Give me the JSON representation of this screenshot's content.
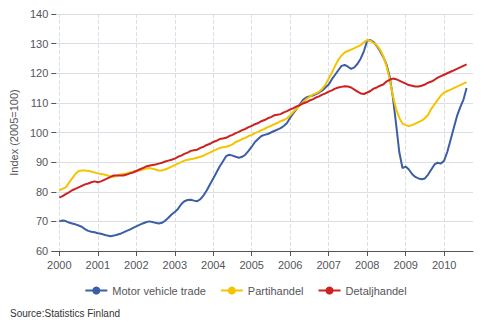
{
  "chart_data": {
    "type": "line",
    "ylabel": "Index (2005=100)",
    "source": "Source:Statistics Finland",
    "xlim": [
      1999.92,
      2010.75
    ],
    "xticks": [
      2000,
      2001,
      2002,
      2003,
      2004,
      2005,
      2006,
      2007,
      2008,
      2009,
      2010
    ],
    "ylim": [
      60,
      140
    ],
    "yticks": [
      60,
      70,
      80,
      90,
      100,
      110,
      120,
      130,
      140
    ],
    "grid": true,
    "legend": "bottom",
    "x": [
      2000,
      2000.0833333333333,
      2000.1666666666667,
      2000.25,
      2000.3333333333333,
      2000.4166666666667,
      2000.5,
      2000.5833333333333,
      2000.6666666666667,
      2000.75,
      2000.8333333333333,
      2000.9166666666667,
      2001,
      2001.0833333333333,
      2001.1666666666667,
      2001.25,
      2001.3333333333333,
      2001.4166666666667,
      2001.5,
      2001.5833333333333,
      2001.6666666666667,
      2001.75,
      2001.8333333333333,
      2001.9166666666667,
      2002,
      2002.0833333333333,
      2002.1666666666667,
      2002.25,
      2002.3333333333333,
      2002.4166666666667,
      2002.5,
      2002.5833333333333,
      2002.6666666666667,
      2002.75,
      2002.8333333333333,
      2002.9166666666667,
      2003,
      2003.0833333333333,
      2003.1666666666667,
      2003.25,
      2003.3333333333333,
      2003.4166666666667,
      2003.5,
      2003.5833333333333,
      2003.6666666666667,
      2003.75,
      2003.8333333333333,
      2003.9166666666667,
      2004,
      2004.0833333333333,
      2004.1666666666667,
      2004.25,
      2004.3333333333333,
      2004.4166666666667,
      2004.5,
      2004.5833333333333,
      2004.6666666666667,
      2004.75,
      2004.8333333333333,
      2004.9166666666667,
      2005,
      2005.0833333333333,
      2005.1666666666667,
      2005.25,
      2005.3333333333333,
      2005.4166666666667,
      2005.5,
      2005.5833333333333,
      2005.6666666666667,
      2005.75,
      2005.8333333333333,
      2005.9166666666667,
      2006,
      2006.0833333333333,
      2006.1666666666667,
      2006.25,
      2006.3333333333333,
      2006.4166666666667,
      2006.5,
      2006.5833333333333,
      2006.6666666666667,
      2006.75,
      2006.8333333333333,
      2006.9166666666667,
      2007,
      2007.0833333333333,
      2007.1666666666667,
      2007.25,
      2007.3333333333333,
      2007.4166666666667,
      2007.5,
      2007.5833333333333,
      2007.6666666666667,
      2007.75,
      2007.8333333333333,
      2007.9166666666667,
      2008,
      2008.0833333333333,
      2008.1666666666667,
      2008.25,
      2008.3333333333333,
      2008.4166666666667,
      2008.5,
      2008.5833333333333,
      2008.6666666666667,
      2008.75,
      2008.8333333333333,
      2008.9166666666667,
      2009,
      2009.0833333333333,
      2009.1666666666667,
      2009.25,
      2009.3333333333333,
      2009.4166666666667,
      2009.5,
      2009.5833333333333,
      2009.6666666666667,
      2009.75,
      2009.8333333333333,
      2009.9166666666667,
      2010,
      2010.0833333333333,
      2010.1666666666667,
      2010.25,
      2010.3333333333333,
      2010.4166666666667,
      2010.5,
      2010.5833333333333
    ],
    "series": [
      {
        "name": "Motor vehicle trade",
        "color": "#3B5EA6",
        "values": [
          70.0,
          70.3,
          70.1,
          69.6,
          69.3,
          69.0,
          68.6,
          68.2,
          67.4,
          66.8,
          66.5,
          66.3,
          66.0,
          65.8,
          65.5,
          65.2,
          65.0,
          65.2,
          65.5,
          65.8,
          66.3,
          66.8,
          67.2,
          67.8,
          68.3,
          68.8,
          69.3,
          69.7,
          70.0,
          69.8,
          69.5,
          69.3,
          69.5,
          70.2,
          71.2,
          72.3,
          73.2,
          74.2,
          75.8,
          76.8,
          77.2,
          77.3,
          77.0,
          76.8,
          77.5,
          78.8,
          80.5,
          82.5,
          84.5,
          86.5,
          88.5,
          90.2,
          92.0,
          92.5,
          92.2,
          91.8,
          91.5,
          91.8,
          92.5,
          93.8,
          95.2,
          96.8,
          97.8,
          98.8,
          99.2,
          99.5,
          100.0,
          100.5,
          101.0,
          101.5,
          102.2,
          103.2,
          105.0,
          106.5,
          108.0,
          109.5,
          111.0,
          111.8,
          112.2,
          112.5,
          113.0,
          113.5,
          114.2,
          115.2,
          116.2,
          118.0,
          119.5,
          121.0,
          122.5,
          122.8,
          122.2,
          121.5,
          122.0,
          123.2,
          125.0,
          127.5,
          131.0,
          131.2,
          130.5,
          129.2,
          127.5,
          125.5,
          123.0,
          119.0,
          112.0,
          103.0,
          93.5,
          88.0,
          88.5,
          87.5,
          86.0,
          85.0,
          84.5,
          84.2,
          84.5,
          85.8,
          87.5,
          89.2,
          89.8,
          89.5,
          90.5,
          93.5,
          97.5,
          101.5,
          105.5,
          108.5,
          111.0,
          115.0
        ]
      },
      {
        "name": "Partihandel",
        "color": "#F5C400",
        "values": [
          80.5,
          81.0,
          81.5,
          83.0,
          84.5,
          86.0,
          87.0,
          87.2,
          87.2,
          87.0,
          86.8,
          86.5,
          86.2,
          86.0,
          85.8,
          85.5,
          85.2,
          85.0,
          85.5,
          85.8,
          86.0,
          86.2,
          86.5,
          86.8,
          87.0,
          87.2,
          87.5,
          87.8,
          88.0,
          87.8,
          87.5,
          87.2,
          87.2,
          87.5,
          88.0,
          88.5,
          89.0,
          89.5,
          90.0,
          90.5,
          90.8,
          91.0,
          91.2,
          91.5,
          91.8,
          92.2,
          92.8,
          93.2,
          93.8,
          94.2,
          94.8,
          95.0,
          95.2,
          95.5,
          96.0,
          96.8,
          97.2,
          97.8,
          98.2,
          98.8,
          99.2,
          99.8,
          100.2,
          100.8,
          101.2,
          101.8,
          102.2,
          102.8,
          103.2,
          103.8,
          104.2,
          104.8,
          105.8,
          107.0,
          108.0,
          109.2,
          110.2,
          111.2,
          112.0,
          112.8,
          113.2,
          113.8,
          114.8,
          116.2,
          118.2,
          120.2,
          122.5,
          124.5,
          126.0,
          127.0,
          127.5,
          128.0,
          128.5,
          129.0,
          129.5,
          130.5,
          131.2,
          131.0,
          130.2,
          129.5,
          128.0,
          125.8,
          122.5,
          118.0,
          112.5,
          108.0,
          105.0,
          103.0,
          102.5,
          102.2,
          102.5,
          103.0,
          103.5,
          104.0,
          104.8,
          106.0,
          108.0,
          109.5,
          111.0,
          112.5,
          113.5,
          114.0,
          114.5,
          115.0,
          115.5,
          116.0,
          116.5,
          117.0
        ]
      },
      {
        "name": "Detaljhandel",
        "color": "#CC2222",
        "values": [
          78.0,
          78.5,
          79.2,
          79.8,
          80.5,
          81.0,
          81.5,
          82.0,
          82.5,
          82.8,
          83.2,
          83.5,
          83.2,
          83.5,
          84.0,
          84.5,
          85.0,
          85.5,
          85.5,
          85.5,
          85.5,
          85.8,
          86.2,
          86.5,
          87.0,
          87.5,
          88.0,
          88.5,
          88.8,
          89.0,
          89.2,
          89.5,
          89.8,
          90.2,
          90.5,
          90.8,
          91.2,
          91.8,
          92.2,
          92.8,
          93.2,
          93.8,
          94.0,
          94.2,
          94.8,
          95.2,
          95.8,
          96.2,
          96.8,
          97.2,
          97.8,
          98.0,
          98.2,
          98.8,
          99.2,
          99.8,
          100.2,
          100.8,
          101.2,
          101.8,
          102.2,
          102.8,
          103.2,
          103.8,
          104.2,
          104.8,
          105.2,
          105.8,
          106.0,
          106.2,
          106.8,
          107.2,
          107.8,
          108.2,
          108.8,
          109.2,
          109.8,
          110.2,
          110.8,
          111.2,
          111.8,
          112.2,
          112.8,
          113.2,
          113.8,
          114.2,
          114.8,
          115.2,
          115.4,
          115.6,
          115.5,
          115.2,
          114.5,
          113.8,
          113.2,
          113.0,
          113.5,
          114.0,
          114.8,
          115.2,
          115.8,
          116.2,
          117.2,
          117.8,
          118.2,
          118.0,
          117.5,
          117.0,
          116.5,
          116.0,
          115.8,
          115.5,
          115.5,
          115.8,
          116.2,
          116.8,
          117.2,
          117.8,
          118.5,
          119.0,
          119.5,
          120.0,
          120.5,
          121.0,
          121.5,
          122.0,
          122.5,
          123.0
        ]
      }
    ]
  }
}
